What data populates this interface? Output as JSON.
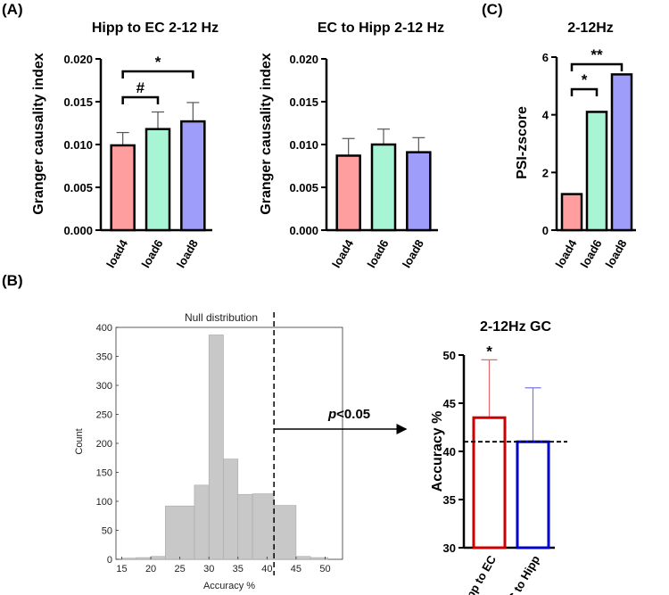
{
  "panel_labels": {
    "a": "(A)",
    "b": "(B)",
    "c": "(C)"
  },
  "chart_data": [
    {
      "id": "a1",
      "type": "bar",
      "title": "Hipp to EC 2-12 Hz",
      "ylabel": "Granger causality index",
      "categories": [
        "load4",
        "load6",
        "load8"
      ],
      "values": [
        0.0099,
        0.0118,
        0.0127
      ],
      "errors": [
        0.0015,
        0.002,
        0.0022
      ],
      "ylim": [
        0,
        0.02
      ],
      "yticks": [
        "0.000",
        "0.005",
        "0.010",
        "0.015",
        "0.020"
      ],
      "colors": [
        "#ff9e9e",
        "#a8f5d6",
        "#9e9efa"
      ],
      "significance": [
        {
          "from": 0,
          "to": 1,
          "label": "#"
        },
        {
          "from": 0,
          "to": 2,
          "label": "*"
        }
      ]
    },
    {
      "id": "a2",
      "type": "bar",
      "title": "EC to Hipp 2-12 Hz",
      "ylabel": "Granger causality index",
      "categories": [
        "load4",
        "load6",
        "load8"
      ],
      "values": [
        0.0087,
        0.01,
        0.0091
      ],
      "errors": [
        0.002,
        0.0018,
        0.0017
      ],
      "ylim": [
        0,
        0.02
      ],
      "yticks": [
        "0.000",
        "0.005",
        "0.010",
        "0.015",
        "0.020"
      ],
      "colors": [
        "#ff9e9e",
        "#a8f5d6",
        "#9e9efa"
      ]
    },
    {
      "id": "c",
      "type": "bar",
      "title": "2-12Hz",
      "ylabel": "PSI-zscore",
      "categories": [
        "load4",
        "load6",
        "load8"
      ],
      "values": [
        1.25,
        4.1,
        5.4
      ],
      "ylim": [
        0,
        6
      ],
      "yticks": [
        "0",
        "2",
        "4",
        "6"
      ],
      "colors": [
        "#ff9e9e",
        "#a8f5d6",
        "#9e9efa"
      ],
      "significance": [
        {
          "from": 0,
          "to": 1,
          "label": "*"
        },
        {
          "from": 0,
          "to": 2,
          "label": "**"
        }
      ]
    },
    {
      "id": "b1",
      "type": "bar",
      "subtype": "histogram",
      "title": "Null distribution",
      "xlabel": "Accuracy %",
      "ylabel": "Count",
      "bins": [
        [
          15,
          17.5
        ],
        [
          17.5,
          20
        ],
        [
          20,
          22.5
        ],
        [
          22.5,
          27.5
        ],
        [
          27.5,
          30
        ],
        [
          30,
          32.5
        ],
        [
          32.5,
          35
        ],
        [
          35,
          37.5
        ],
        [
          37.5,
          41.2
        ],
        [
          41.2,
          45
        ],
        [
          45,
          47.5
        ],
        [
          47.5,
          50.5
        ]
      ],
      "counts": [
        2,
        3,
        5,
        92,
        128,
        387,
        173,
        112,
        113,
        93,
        5,
        3
      ],
      "xlim": [
        14,
        53
      ],
      "ylim": [
        0,
        400
      ],
      "xticks": [
        "15",
        "20",
        "25",
        "30",
        "35",
        "40",
        "45",
        "50"
      ],
      "yticks": [
        "0",
        "50",
        "100",
        "150",
        "200",
        "250",
        "300",
        "350",
        "400"
      ],
      "threshold": 41.2,
      "annotation_italic": "p",
      "annotation_rest": "<0.05"
    },
    {
      "id": "b2",
      "type": "bar",
      "title": "2-12Hz GC",
      "ylabel": "Accuracy %",
      "categories": [
        "Hipp to EC",
        "EC to Hipp"
      ],
      "values": [
        43.5,
        41.0
      ],
      "errors": [
        6.0,
        5.6
      ],
      "ylim": [
        30,
        50
      ],
      "yticks": [
        "30",
        "35",
        "40",
        "45",
        "50"
      ],
      "colors": [
        "#cc0000",
        "#0000cc"
      ],
      "error_colors": [
        "#e36a6a",
        "#7a7ae6"
      ],
      "chance_level": 41.0,
      "significance_label": "*"
    }
  ]
}
